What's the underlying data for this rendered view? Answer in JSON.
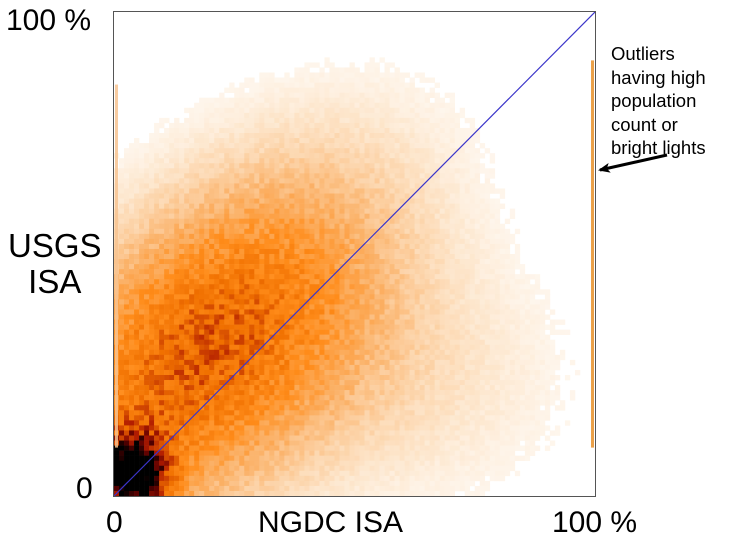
{
  "chart_data": {
    "type": "heatmap",
    "title": "",
    "xlabel": "NGDC ISA",
    "ylabel": "USGS ISA",
    "x_ticks": [
      "0",
      "100 %"
    ],
    "y_ticks": [
      "0",
      "100 %"
    ],
    "xlim": [
      0,
      100
    ],
    "ylim": [
      0,
      100
    ],
    "grid": false,
    "legend": null,
    "colormap": [
      "#ffffff",
      "#fde6cc",
      "#fbb36b",
      "#ff8c1a",
      "#f07000",
      "#b01a00",
      "#5a0000",
      "#000000"
    ],
    "density_peak": {
      "x": 4,
      "y": 4
    },
    "reference_line": {
      "label": "1:1 line",
      "from": [
        0,
        0
      ],
      "to": [
        100,
        100
      ],
      "color": "#3b35c9"
    },
    "outlier_strips": [
      {
        "x": 100,
        "y_range": [
          10,
          90
        ],
        "color": "#e8902a"
      },
      {
        "x": 0,
        "y_range": [
          10,
          85
        ],
        "color": "#f7c390"
      }
    ],
    "annotation": {
      "text": "Outliers having high population count or bright lights",
      "points_to": {
        "x": 100,
        "y": 67
      }
    }
  },
  "labels": {
    "y_top": "100 %",
    "y_bottom": "0",
    "x_left": "0",
    "x_right": "100 %",
    "y_title_line1": "USGS",
    "y_title_line2": "ISA",
    "x_title": "NGDC ISA",
    "annotation_lines": [
      "Outliers",
      "having high",
      "population",
      "count or",
      "bright lights"
    ]
  }
}
